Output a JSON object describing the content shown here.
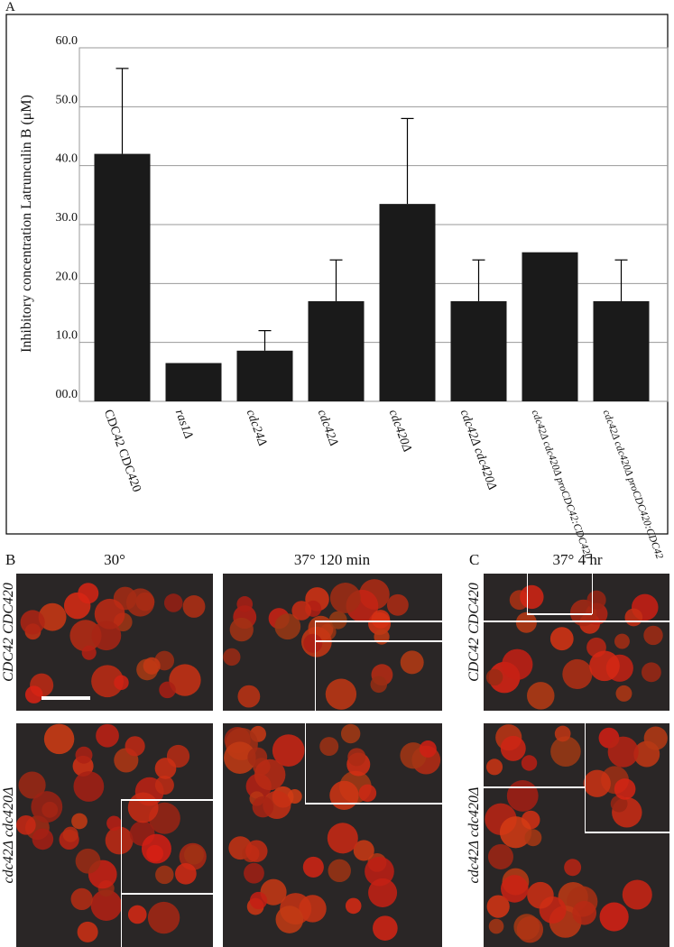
{
  "chart_data": {
    "type": "bar",
    "ylabel": "Inhibitory concentration Latrunculin B (μM)",
    "categories": [
      "CDC42 CDC420",
      "ras1Δ",
      "cdc24Δ",
      "cdc42Δ",
      "cdc420Δ",
      "cdc42Δ cdc420Δ",
      "cdc42Δ cdc420Δ proCDC42:CDC420",
      "cdc42Δ cdc420Δ proCDC420:CDC42"
    ],
    "values": [
      42,
      6.5,
      8.6,
      17,
      33.5,
      17,
      25.3,
      17
    ],
    "errors": [
      14.5,
      null,
      3.4,
      7,
      14.5,
      7,
      null,
      7
    ],
    "color": "#1a1a1a",
    "ylim": [
      0,
      60
    ],
    "yticks": [
      {
        "value": 0,
        "label": "00.0"
      },
      {
        "value": 10,
        "label": "10.0"
      },
      {
        "value": 20,
        "label": "20.0"
      },
      {
        "value": 30,
        "label": "30.0"
      },
      {
        "value": 40,
        "label": "40.0"
      },
      {
        "value": 50,
        "label": "50.0"
      },
      {
        "value": 60,
        "label": "60.0"
      }
    ],
    "grid": true
  },
  "panel_labels": [
    "A",
    "B",
    "C"
  ],
  "column_headers": [
    "30°",
    "37° 120 min",
    "37° 4 hr"
  ],
  "row_labels": [
    "CDC42 CDC420",
    "cdc42Δ cdc420Δ"
  ]
}
